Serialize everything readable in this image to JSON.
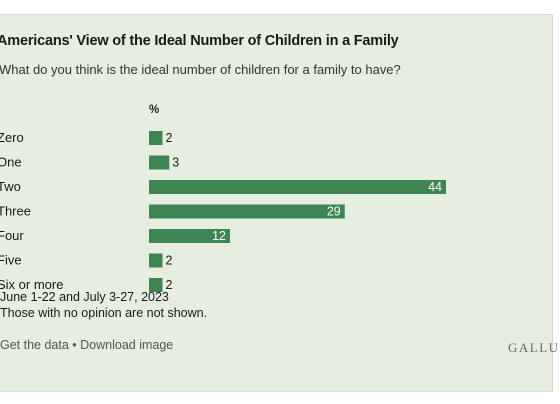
{
  "title": "Americans' View of the Ideal Number of Children in a Family",
  "subtitle": "What do you think is the ideal number of children for a family to have?",
  "column_header": "%",
  "notes": [
    "June 1-22 and July 3-27, 2023",
    "Those with no opinion are not shown."
  ],
  "footer": {
    "get_data": "Get the data",
    "separator": " • ",
    "download": "Download image",
    "brand": "GALLUP"
  },
  "colors": {
    "bar": "#3d8651",
    "background": "#e5eedf"
  },
  "chart_data": {
    "type": "bar",
    "orientation": "horizontal",
    "categories": [
      "Zero",
      "One",
      "Two",
      "Three",
      "Four",
      "Five",
      "Six or more"
    ],
    "values": [
      2,
      3,
      44,
      29,
      12,
      2,
      2
    ],
    "unit": "%"
  }
}
